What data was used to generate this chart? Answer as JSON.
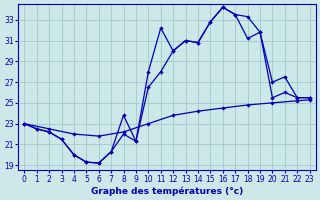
{
  "xlabel": "Graphe des températures (°c)",
  "background_color": "#cce8e8",
  "line_color": "#0000bb",
  "grid_color": "#aacccc",
  "ylim": [
    18.5,
    34.5
  ],
  "xlim": [
    -0.5,
    23.5
  ],
  "yticks": [
    19,
    21,
    23,
    25,
    27,
    29,
    31,
    33
  ],
  "xticks": [
    0,
    1,
    2,
    3,
    4,
    5,
    6,
    7,
    8,
    9,
    10,
    11,
    12,
    13,
    14,
    15,
    16,
    17,
    18,
    19,
    20,
    21,
    22,
    23
  ],
  "s1_x": [
    0,
    1,
    2,
    3,
    4,
    5,
    6,
    7,
    8,
    9,
    10,
    11,
    12,
    13,
    14,
    15,
    16,
    17,
    18,
    19,
    20,
    21,
    22,
    23
  ],
  "s1_y": [
    23.0,
    22.5,
    22.2,
    21.5,
    20.0,
    19.3,
    19.2,
    20.3,
    23.8,
    21.3,
    28.0,
    32.2,
    30.0,
    31.0,
    30.8,
    32.8,
    34.2,
    33.5,
    33.3,
    31.8,
    25.5,
    26.0,
    25.5,
    25.5
  ],
  "s2_x": [
    0,
    1,
    2,
    3,
    4,
    5,
    6,
    7,
    8,
    9,
    10,
    11,
    12,
    13,
    14,
    15,
    16,
    17,
    18,
    19,
    20,
    21,
    22,
    23
  ],
  "s2_y": [
    23.0,
    22.5,
    22.2,
    21.5,
    20.0,
    19.3,
    19.2,
    20.3,
    22.0,
    21.3,
    26.5,
    28.0,
    30.0,
    31.0,
    30.8,
    32.8,
    34.2,
    33.5,
    31.2,
    31.8,
    27.0,
    27.5,
    25.5,
    25.5
  ],
  "s3_x": [
    0,
    2,
    4,
    6,
    8,
    10,
    12,
    14,
    16,
    18,
    20,
    22,
    23
  ],
  "s3_y": [
    23.0,
    22.5,
    22.0,
    21.8,
    22.2,
    23.0,
    23.8,
    24.2,
    24.5,
    24.8,
    25.0,
    25.2,
    25.3
  ]
}
